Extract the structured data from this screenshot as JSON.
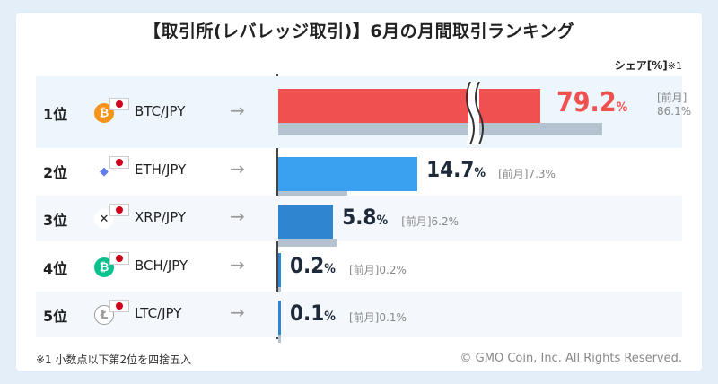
{
  "title": "【取引所(レバレッジ取引)】6月の月間取引ランキング",
  "share_label": "シェア[%]",
  "share_note": "※1",
  "prev_prefix": "[前月]",
  "footnote": "※1  小数点以下第2位を四捨五入",
  "copyright": "© GMO Coin, Inc. All Rights Reserved.",
  "arrow_glyph": "→",
  "colors": {
    "rank1": "#f05050",
    "bar": "#3aa0f0",
    "bar_dark": "#2e86d0",
    "prev": "#b4c3cf",
    "value_dark": "#1e2a3a"
  },
  "chart_data": {
    "type": "bar",
    "categories": [
      "BTC/JPY",
      "ETH/JPY",
      "XRP/JPY",
      "BCH/JPY",
      "LTC/JPY"
    ],
    "ranks": [
      "1位",
      "2位",
      "3位",
      "4位",
      "5位"
    ],
    "series": [
      {
        "name": "",
        "values": [
          79.2,
          14.7,
          5.8,
          0.2,
          0.1
        ]
      },
      {
        "name": "前月",
        "values": [
          86.1,
          7.3,
          6.2,
          0.2,
          0.1
        ]
      }
    ],
    "value_labels": [
      "79.2",
      "14.7",
      "5.8",
      "0.2",
      "0.1"
    ],
    "prev_labels": [
      "86.1%",
      "7.3%",
      "6.2%",
      "0.2%",
      "0.1%"
    ],
    "unit": "%",
    "axis_break_on_first": true
  },
  "coins": [
    {
      "icon": "bitcoin-icon",
      "symbol": "₿",
      "color": "#f7931a"
    },
    {
      "icon": "ethereum-icon",
      "symbol": "◆",
      "color": "#627eea"
    },
    {
      "icon": "ripple-icon",
      "symbol": "✕",
      "color": "#222222"
    },
    {
      "icon": "bitcoin-cash-icon",
      "symbol": "₿",
      "color": "#0ac18e"
    },
    {
      "icon": "litecoin-icon",
      "symbol": "Ł",
      "color": "#bfbbbb"
    }
  ]
}
